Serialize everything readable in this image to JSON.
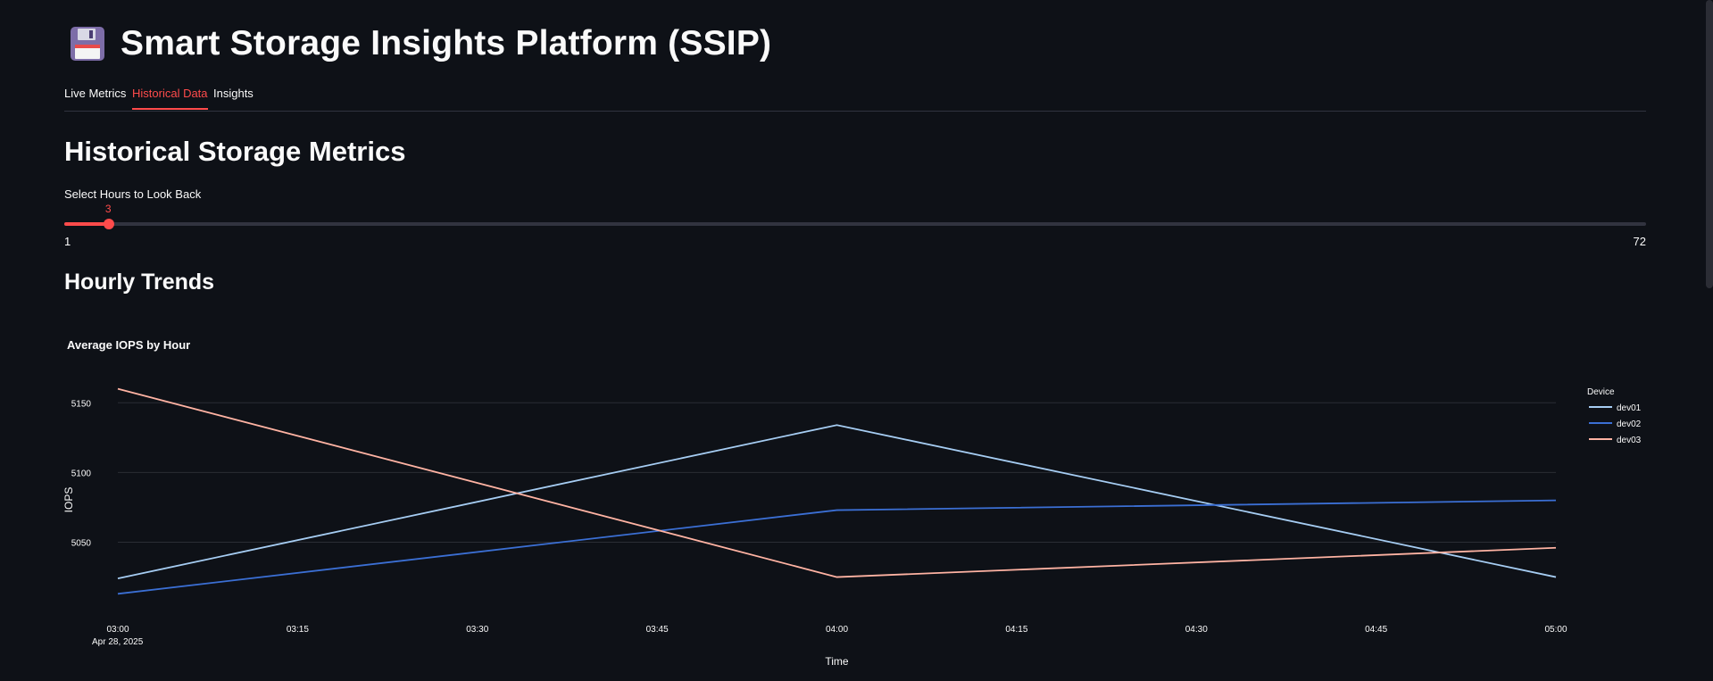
{
  "app": {
    "title_icon": "floppy-disk-icon",
    "title": "Smart Storage Insights Platform (SSIP)"
  },
  "tabs": [
    {
      "label": "Live Metrics",
      "active": false
    },
    {
      "label": "Historical Data",
      "active": true
    },
    {
      "label": "Insights",
      "active": false
    }
  ],
  "section": {
    "title": "Historical Storage Metrics"
  },
  "slider": {
    "label": "Select Hours to Look Back",
    "value": 3,
    "min": 1,
    "max": 72,
    "min_label": "1",
    "max_label": "72",
    "value_label": "3"
  },
  "subsection": {
    "title": "Hourly Trends"
  },
  "colors": {
    "accent": "#ff4b4b",
    "background": "#0e1117",
    "grid": "#2a2d35",
    "dev01": "#a6cdf3",
    "dev02": "#3b6fd4",
    "dev03": "#ffb3a3"
  },
  "chart_data": {
    "type": "line",
    "title": "Average IOPS by Hour",
    "xlabel": "Time",
    "ylabel": "IOPS",
    "x_ticks": [
      "03:00",
      "03:15",
      "03:30",
      "03:45",
      "04:00",
      "04:15",
      "04:30",
      "04:45",
      "05:00"
    ],
    "x_date_label": "Apr 28, 2025",
    "x_range": [
      "2025-04-28 03:00",
      "2025-04-28 05:00"
    ],
    "y_ticks": [
      5050,
      5100,
      5150
    ],
    "y_range": [
      5010,
      5170
    ],
    "grid": true,
    "legend_title": "Device",
    "legend_position": "top-right",
    "x": [
      "2025-04-28 03:00",
      "2025-04-28 04:00",
      "2025-04-28 05:00"
    ],
    "series": [
      {
        "name": "dev01",
        "values": [
          5024,
          5134,
          5025
        ]
      },
      {
        "name": "dev02",
        "values": [
          5013,
          5073,
          5080
        ]
      },
      {
        "name": "dev03",
        "values": [
          5160,
          5025,
          5046
        ]
      }
    ]
  }
}
